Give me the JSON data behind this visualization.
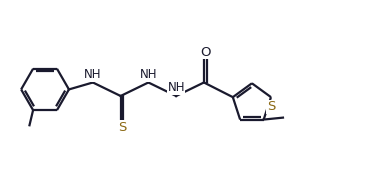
{
  "background_color": "#ffffff",
  "line_color": "#1a1a2e",
  "sulfur_color": "#8B6914",
  "line_width": 1.6,
  "font_size": 8.5,
  "fig_width": 3.87,
  "fig_height": 1.75,
  "dpi": 100,
  "xlim": [
    0,
    10
  ],
  "ylim": [
    0,
    4.5
  ]
}
